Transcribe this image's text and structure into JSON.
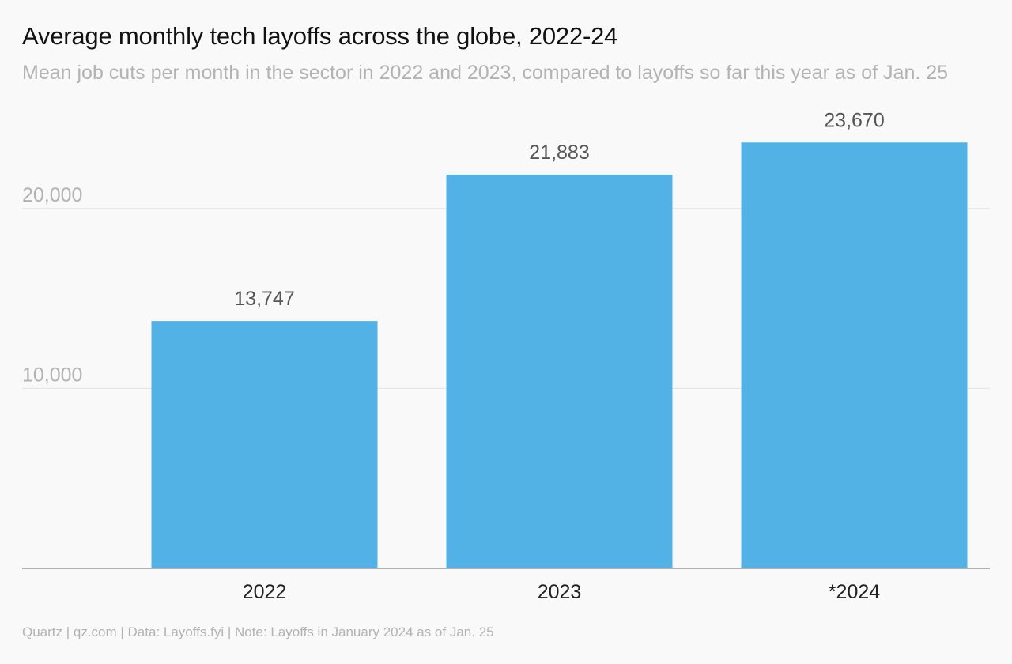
{
  "chart_data": {
    "type": "bar",
    "title": "Average monthly tech layoffs across the globe, 2022-24",
    "subtitle": "Mean job cuts per month in the sector in 2022 and 2023, compared to layoffs so far this year as of Jan. 25",
    "categories": [
      "2022",
      "2023",
      "*2024"
    ],
    "values": [
      13747,
      21883,
      23670
    ],
    "value_labels": [
      "13,747",
      "21,883",
      "23,670"
    ],
    "xlabel": "",
    "ylabel": "",
    "ylim": [
      0,
      25000
    ],
    "yticks": [
      10000,
      20000
    ],
    "ytick_labels": [
      "10,000",
      "20,000"
    ],
    "grid": true,
    "legend": "none",
    "colors": {
      "bar": "#53b2e5",
      "grid": "#e3e3e3",
      "axis": "#999999"
    }
  },
  "footer": "Quartz | qz.com | Data: Layoffs.fyi | Note: Layoffs in January 2024 as of Jan. 25"
}
